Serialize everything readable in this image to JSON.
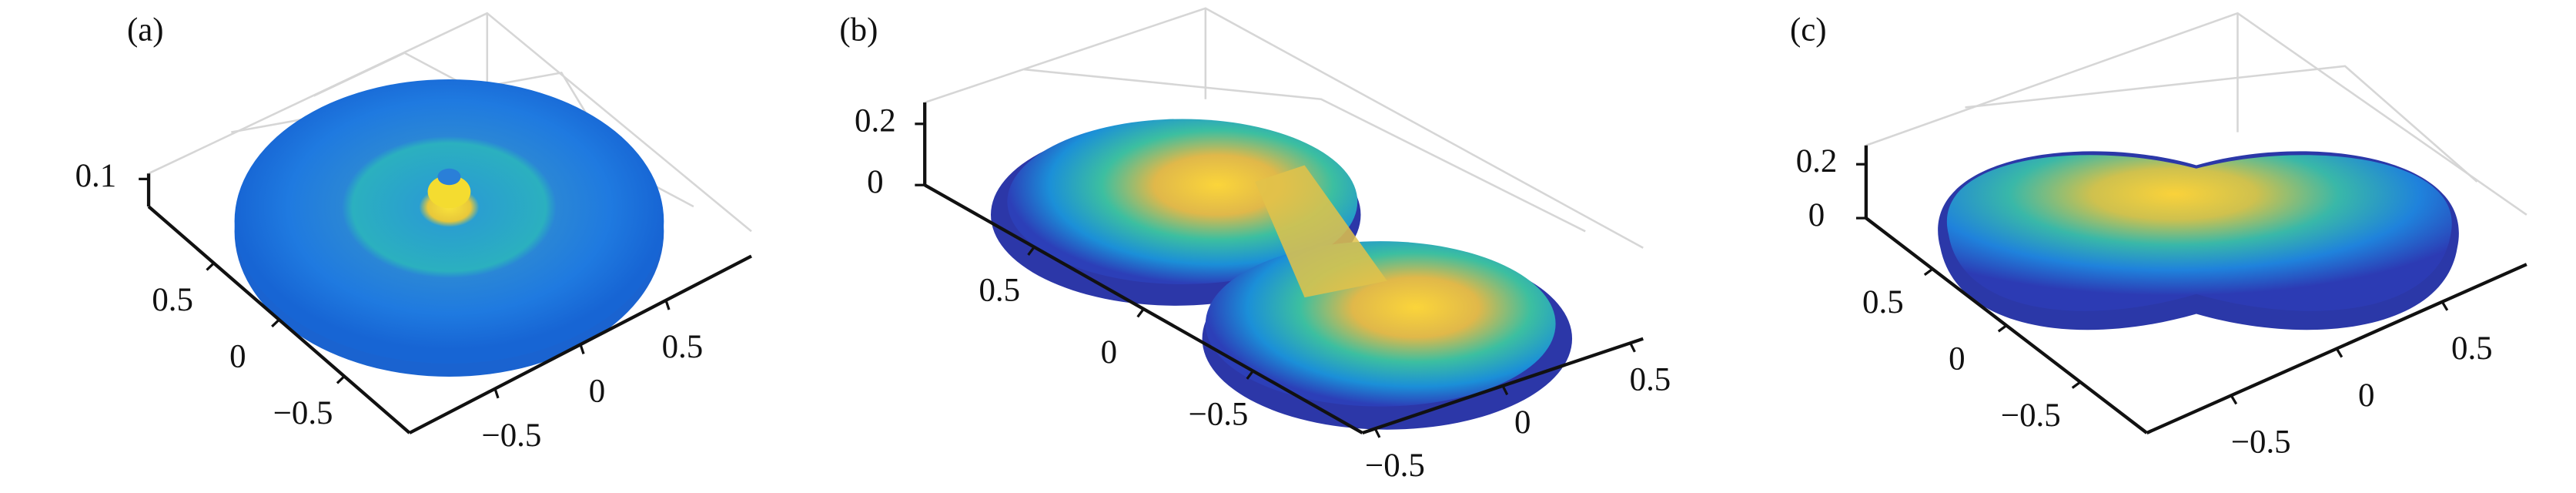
{
  "chart_data": [
    {
      "type": "surface",
      "title": "(a)",
      "xlim": [
        -1,
        1
      ],
      "xticks": [
        {
          "value": -0.5,
          "label": "−0.5"
        },
        0,
        0.5
      ],
      "ylim": [
        -1,
        1
      ],
      "yticks": [
        {
          "value": -0.5,
          "label": "−0.5"
        },
        0,
        0.5
      ],
      "zlim": [
        0,
        0.12
      ],
      "zticks": [
        0.1
      ]
    },
    {
      "type": "surface",
      "title": "(b)",
      "xlim": [
        -0.55,
        0.55
      ],
      "xticks": [
        {
          "value": -0.5,
          "label": "−0.5"
        },
        0,
        0.5
      ],
      "ylim": [
        -1,
        1
      ],
      "yticks": [
        {
          "value": -0.5,
          "label": "−0.5"
        },
        0,
        0.5
      ],
      "zlim": [
        0,
        0.27
      ],
      "zticks": [
        0,
        0.2
      ]
    },
    {
      "type": "surface",
      "title": "(c)",
      "xlim": [
        -0.9,
        0.9
      ],
      "xticks": [
        {
          "value": -0.5,
          "label": "−0.5"
        },
        0,
        0.5
      ],
      "ylim": [
        -0.95,
        0.95
      ],
      "yticks": [
        {
          "value": -0.5,
          "label": "−0.5"
        },
        0,
        0.5
      ],
      "zlim": [
        0,
        0.27
      ],
      "zticks": [
        0,
        0.2
      ]
    }
  ]
}
